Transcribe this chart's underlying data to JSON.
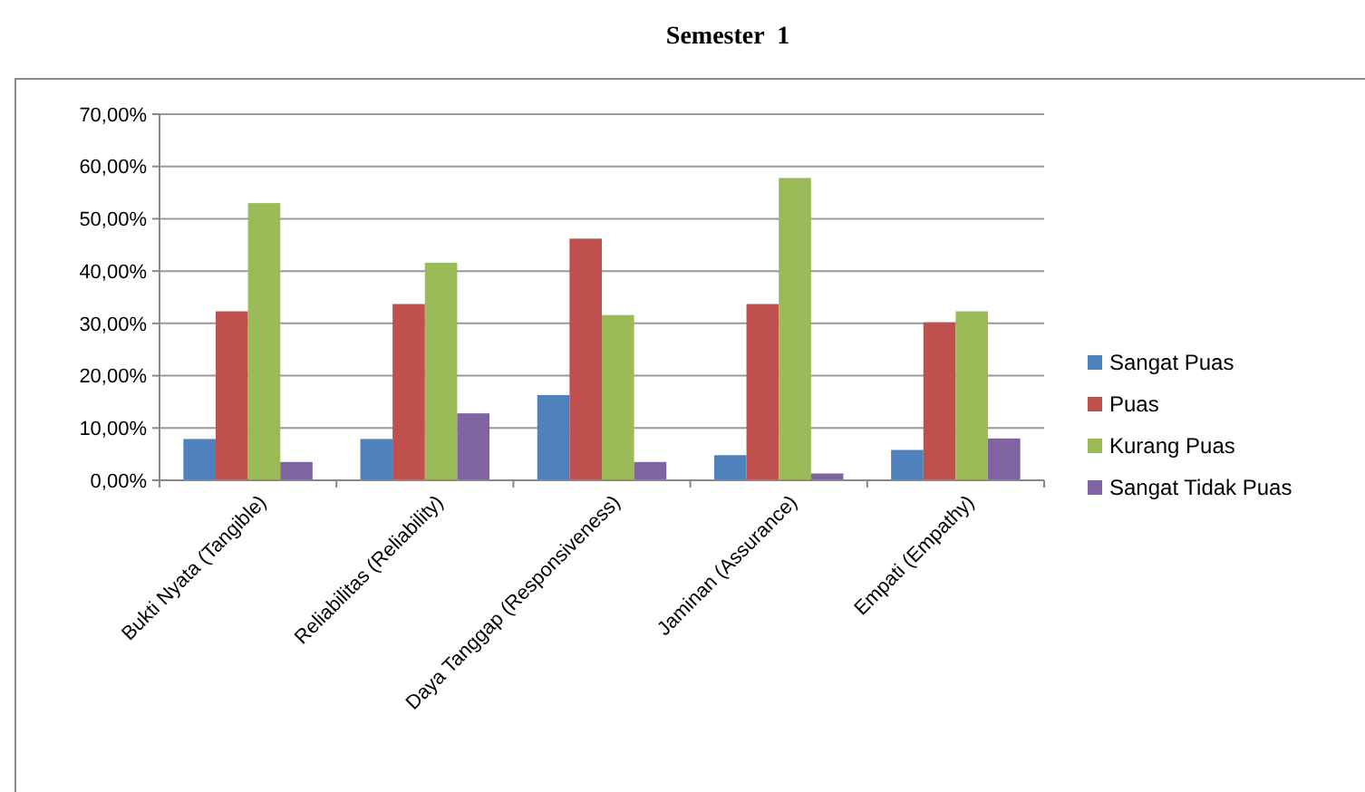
{
  "chart_data": {
    "type": "bar",
    "title": "Semester  1",
    "categories": [
      "Bukti Nyata (Tangible)",
      "Reliabilitas (Reliability)",
      "Daya Tanggap (Responsiveness)",
      "Jaminan (Assurance)",
      "Empati (Empathy)"
    ],
    "series": [
      {
        "name": "Sangat Puas",
        "color": "#4f81bd",
        "values": [
          7.9,
          7.9,
          16.3,
          4.8,
          5.8
        ]
      },
      {
        "name": "Puas",
        "color": "#c0504d",
        "values": [
          32.3,
          33.7,
          46.2,
          33.7,
          30.2
        ]
      },
      {
        "name": "Kurang Puas",
        "color": "#9bbb59",
        "values": [
          53.0,
          41.6,
          31.6,
          57.8,
          32.3
        ]
      },
      {
        "name": "Sangat Tidak Puas",
        "color": "#8064a2",
        "values": [
          3.5,
          12.8,
          3.5,
          1.3,
          8.0
        ]
      }
    ],
    "ylim": [
      0,
      70
    ],
    "yticks": [
      {
        "value": 0,
        "label": "0,00%"
      },
      {
        "value": 10,
        "label": "10,00%"
      },
      {
        "value": 20,
        "label": "20,00%"
      },
      {
        "value": 30,
        "label": "30,00%"
      },
      {
        "value": 40,
        "label": "40,00%"
      },
      {
        "value": 50,
        "label": "50,00%"
      },
      {
        "value": 60,
        "label": "60,00%"
      },
      {
        "value": 70,
        "label": "70,00%"
      }
    ],
    "grid": "y",
    "legend": "right"
  }
}
